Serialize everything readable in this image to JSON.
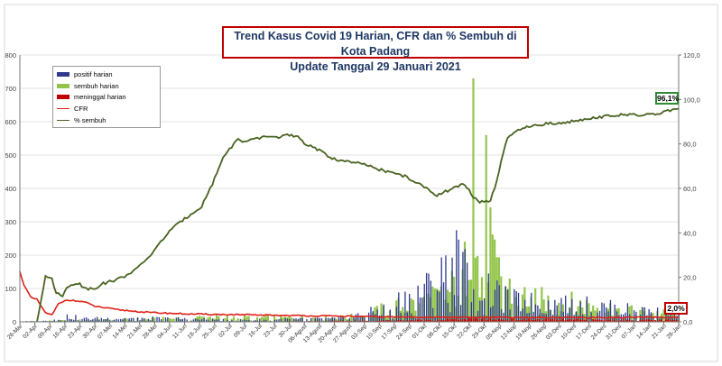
{
  "chart_data": {
    "type": "bar+line",
    "title_line1": "Trend Kasus Covid 19 Harian, CFR dan % Sembuh di Kota Padang",
    "title_line2": "Update Tanggal 29 Januari 2021",
    "left_axis": {
      "min": 0,
      "max": 800,
      "ticks": [
        "0",
        "100",
        "200",
        "300",
        "400",
        "500",
        "600",
        "700",
        "800"
      ]
    },
    "right_axis": {
      "min": 0,
      "max": 120,
      "ticks": [
        "0,0",
        "20,0",
        "40,0",
        "60,0",
        "80,0",
        "100,0",
        "120,0"
      ]
    },
    "date_start": "26-Mar",
    "x_ticks": [
      "26-Mar",
      "02-Apr",
      "09-Apr",
      "16-Apr",
      "23-Apr",
      "30-Apr",
      "07-Mei",
      "14-Mei",
      "21-Mei",
      "28-Mei",
      "04-Jun",
      "11-Jun",
      "18-Jun",
      "25-Jun",
      "02-Jul",
      "09-Jul",
      "16-Jul",
      "23-Jul",
      "30-Jul",
      "06-Agust",
      "13-Agust",
      "20-Agust",
      "27-Agust",
      "03-Sep",
      "10-Sep",
      "17-Sep",
      "24-Sep",
      "01-Okt",
      "08-Okt",
      "15-Okt",
      "22-Okt",
      "29-Okt",
      "05-Nop",
      "12-Nop",
      "19-Nop",
      "26-Nop",
      "03-Des",
      "10-Des",
      "17-Des",
      "24-Des",
      "31-Des",
      "07-Jan",
      "14-Jan",
      "21-Jan",
      "28-Jan"
    ],
    "legend": [
      {
        "name": "positif harian",
        "color": "#2f3a8f",
        "kind": "bar"
      },
      {
        "name": "sembuh harian",
        "color": "#92c44a",
        "kind": "bar"
      },
      {
        "name": "meninggal harian",
        "color": "#c00000",
        "kind": "bar"
      },
      {
        "name": "CFR",
        "color": "#e0201a",
        "kind": "line"
      },
      {
        "name": "% sembuh",
        "color": "#4a6320",
        "kind": "line"
      }
    ],
    "series_note": "daily counts on left axis (approximate envelope estimates read from the chart), CFR and % sembuh on right axis (percent)",
    "positif_envelope": [
      [
        0,
        2
      ],
      [
        14,
        5
      ],
      [
        21,
        28
      ],
      [
        30,
        15
      ],
      [
        60,
        18
      ],
      [
        100,
        8
      ],
      [
        125,
        12
      ],
      [
        150,
        15
      ],
      [
        160,
        35
      ],
      [
        170,
        60
      ],
      [
        175,
        90
      ],
      [
        183,
        120
      ],
      [
        190,
        160
      ],
      [
        194,
        185
      ],
      [
        197,
        210
      ],
      [
        200,
        270
      ],
      [
        203,
        340
      ],
      [
        206,
        240
      ],
      [
        210,
        220
      ],
      [
        214,
        250
      ],
      [
        218,
        150
      ],
      [
        224,
        120
      ],
      [
        230,
        100
      ],
      [
        240,
        90
      ],
      [
        250,
        80
      ],
      [
        260,
        80
      ],
      [
        270,
        75
      ],
      [
        280,
        60
      ],
      [
        290,
        55
      ],
      [
        298,
        45
      ],
      [
        308,
        40
      ]
    ],
    "sembuh_envelope": [
      [
        0,
        0
      ],
      [
        14,
        5
      ],
      [
        30,
        8
      ],
      [
        60,
        12
      ],
      [
        90,
        25
      ],
      [
        120,
        20
      ],
      [
        150,
        20
      ],
      [
        160,
        30
      ],
      [
        170,
        60
      ],
      [
        183,
        90
      ],
      [
        190,
        100
      ],
      [
        200,
        140
      ],
      [
        208,
        240
      ],
      [
        212,
        730
      ],
      [
        215,
        120
      ],
      [
        218,
        560
      ],
      [
        222,
        250
      ],
      [
        228,
        170
      ],
      [
        240,
        110
      ],
      [
        250,
        100
      ],
      [
        260,
        90
      ],
      [
        270,
        80
      ],
      [
        280,
        60
      ],
      [
        290,
        50
      ],
      [
        300,
        40
      ],
      [
        308,
        35
      ]
    ],
    "meninggal_envelope": [
      [
        0,
        0
      ],
      [
        100,
        2
      ],
      [
        160,
        4
      ],
      [
        190,
        8
      ],
      [
        210,
        12
      ],
      [
        250,
        9
      ],
      [
        308,
        7
      ]
    ],
    "cfr_points": [
      [
        0,
        22.5
      ],
      [
        2,
        16.5
      ],
      [
        5,
        11
      ],
      [
        8,
        10
      ],
      [
        10,
        7
      ],
      [
        12,
        4
      ],
      [
        15,
        3
      ],
      [
        18,
        8
      ],
      [
        22,
        10
      ],
      [
        25,
        9.5
      ],
      [
        30,
        9
      ],
      [
        35,
        7
      ],
      [
        45,
        5.5
      ],
      [
        60,
        4.2
      ],
      [
        80,
        3.5
      ],
      [
        100,
        3.2
      ],
      [
        130,
        2.8
      ],
      [
        150,
        2.5
      ],
      [
        170,
        2.2
      ],
      [
        200,
        2.0
      ],
      [
        250,
        1.9
      ],
      [
        308,
        2.0
      ]
    ],
    "sembuh_points": [
      [
        8,
        0
      ],
      [
        12,
        21
      ],
      [
        15,
        19
      ],
      [
        17,
        13
      ],
      [
        20,
        12
      ],
      [
        22,
        15
      ],
      [
        25,
        17
      ],
      [
        28,
        17.5
      ],
      [
        30,
        15
      ],
      [
        35,
        15
      ],
      [
        38,
        17
      ],
      [
        42,
        18
      ],
      [
        48,
        20
      ],
      [
        55,
        24
      ],
      [
        62,
        31
      ],
      [
        70,
        41
      ],
      [
        78,
        47
      ],
      [
        85,
        52
      ],
      [
        90,
        62
      ],
      [
        95,
        74
      ],
      [
        100,
        80
      ],
      [
        102,
        82
      ],
      [
        105,
        81
      ],
      [
        110,
        82
      ],
      [
        115,
        83.5
      ],
      [
        120,
        83
      ],
      [
        125,
        84
      ],
      [
        130,
        83
      ],
      [
        133,
        80
      ],
      [
        137,
        79
      ],
      [
        140,
        77
      ],
      [
        145,
        74
      ],
      [
        150,
        72.5
      ],
      [
        160,
        71
      ],
      [
        170,
        68
      ],
      [
        180,
        65.5
      ],
      [
        190,
        60
      ],
      [
        195,
        57
      ],
      [
        200,
        59
      ],
      [
        208,
        62
      ],
      [
        212,
        56
      ],
      [
        215,
        54
      ],
      [
        220,
        54.5
      ],
      [
        223,
        63
      ],
      [
        225,
        72
      ],
      [
        228,
        83
      ],
      [
        235,
        87
      ],
      [
        245,
        89
      ],
      [
        255,
        89.5
      ],
      [
        265,
        91.5
      ],
      [
        280,
        93
      ],
      [
        295,
        93
      ],
      [
        308,
        96.1
      ]
    ],
    "end_labels": {
      "sembuh": "96,1%",
      "cfr": "2,0%"
    }
  }
}
